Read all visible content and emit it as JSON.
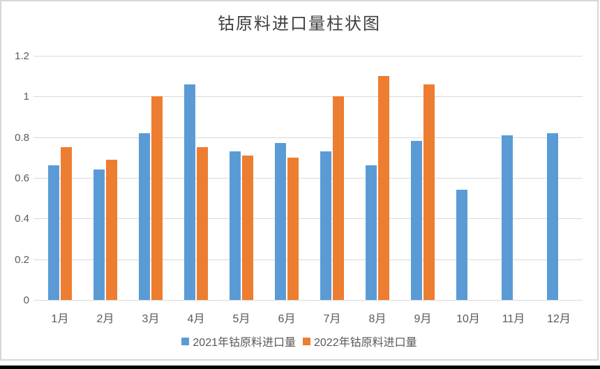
{
  "window": {
    "background_color": "#ffffff",
    "frame_border_color": "#d7d7d7",
    "bottom_bar_color": "#000000"
  },
  "chart_data": {
    "type": "bar",
    "title": "钴原料进口量柱状图",
    "categories": [
      "1月",
      "2月",
      "3月",
      "4月",
      "5月",
      "6月",
      "7月",
      "8月",
      "9月",
      "10月",
      "11月",
      "12月"
    ],
    "series": [
      {
        "name": "2021年钴原料进口量",
        "color": "#5B9BD5",
        "values": [
          0.66,
          0.64,
          0.82,
          1.06,
          0.73,
          0.77,
          0.73,
          0.66,
          0.78,
          0.54,
          0.81,
          0.82
        ]
      },
      {
        "name": "2022年钴原料进口量",
        "color": "#ED7D31",
        "values": [
          0.75,
          0.69,
          1.0,
          0.75,
          0.71,
          0.7,
          1.0,
          1.1,
          1.06,
          null,
          null,
          null
        ]
      }
    ],
    "xlabel": "",
    "ylabel": "",
    "ylim": [
      0,
      1.2
    ],
    "ytick_values": [
      0,
      0.2,
      0.4,
      0.6,
      0.8,
      1,
      1.2
    ],
    "ytick_labels": [
      "0",
      "0.2",
      "0.4",
      "0.6",
      "0.8",
      "1",
      "1.2"
    ],
    "grid": true,
    "gridline_color": "#d9d9d9",
    "axis_label_color": "#595959",
    "title_color": "#404040",
    "legend_position": "bottom"
  }
}
